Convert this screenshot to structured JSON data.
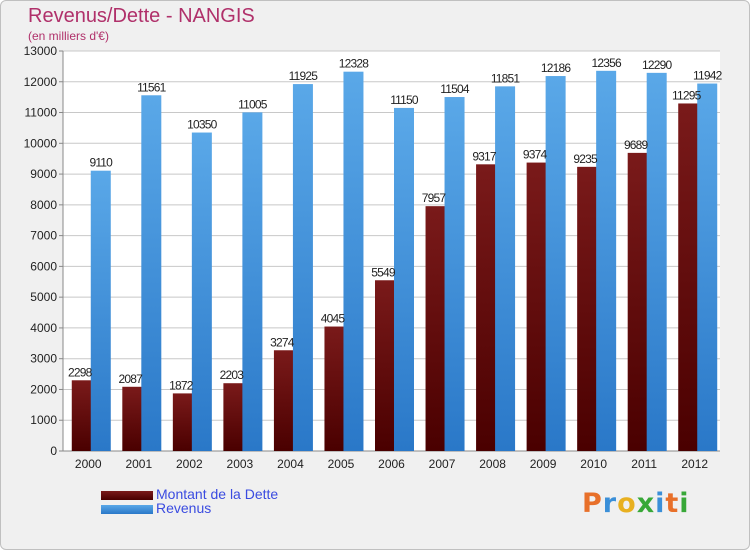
{
  "header": {
    "title": "Revenus/Dette - NANGIS",
    "subtitle": "(en milliers d'€)"
  },
  "colors": {
    "debt": "#7a1a1a",
    "debt_dark": "#4a0000",
    "revenue": "#5aa8e8",
    "revenue_dark": "#2a78c8",
    "grid": "#c8c8c8",
    "plot_bg": "#ffffff",
    "axis_text": "#222222"
  },
  "legend": {
    "debt_label": "Montant de la Dette",
    "revenue_label": "Revenus"
  },
  "logo": {
    "letters": [
      "P",
      "r",
      "o",
      "x",
      "i",
      "t",
      "i"
    ],
    "colors": [
      "#e8702a",
      "#3a8fd8",
      "#e8b020",
      "#38a838",
      "#3a8fd8",
      "#e8702a",
      "#38a838"
    ]
  },
  "chart_data": {
    "type": "bar",
    "title": "Revenus/Dette - NANGIS",
    "subtitle": "(en milliers d'€)",
    "categories": [
      "2000",
      "2001",
      "2002",
      "2003",
      "2004",
      "2005",
      "2006",
      "2007",
      "2008",
      "2009",
      "2010",
      "2011",
      "2012"
    ],
    "series": [
      {
        "name": "Montant de la Dette",
        "values": [
          2298,
          2087,
          1872,
          2203,
          3274,
          4045,
          5549,
          7957,
          9317,
          9374,
          9235,
          9689,
          11295
        ]
      },
      {
        "name": "Revenus",
        "values": [
          9110,
          11561,
          10350,
          11005,
          11925,
          12328,
          11150,
          11504,
          11851,
          12186,
          12356,
          12290,
          11942
        ]
      }
    ],
    "yticks": [
      0,
      1000,
      2000,
      3000,
      4000,
      5000,
      6000,
      7000,
      8000,
      9000,
      10000,
      11000,
      12000,
      13000
    ],
    "ylim": [
      0,
      13000
    ],
    "grid": true,
    "legend_position": "bottom-left"
  }
}
